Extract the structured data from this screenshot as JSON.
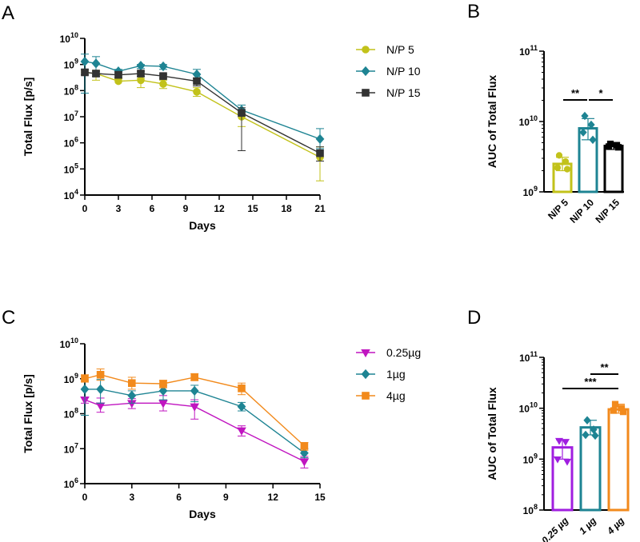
{
  "chart_data": [
    {
      "panel": "A",
      "type": "line",
      "xlabel": "Days",
      "ylabel": "Total Flux [p/s]",
      "xlim": [
        0,
        21
      ],
      "xticks": [
        0,
        3,
        6,
        9,
        12,
        15,
        18,
        21
      ],
      "y_scale": "log",
      "ylim_exp": [
        4,
        10
      ],
      "legend_position": "right",
      "series": [
        {
          "name": "N/P 5",
          "color": "#c2c21a",
          "marker": "circle",
          "x": [
            0,
            1,
            3,
            5,
            7,
            10,
            14,
            21
          ],
          "y": [
            500000000.0,
            450000000.0,
            230000000.0,
            250000000.0,
            180000000.0,
            90000000.0,
            10000000.0,
            280000.0
          ],
          "err_lo": [
            400000000.0,
            250000000.0,
            280000000.0,
            130000000.0,
            120000000.0,
            60000000.0,
            4200000.0,
            35000.0
          ],
          "err_hi": [
            600000000.0,
            600000000.0,
            290000000.0,
            290000000.0,
            250000000.0,
            130000000.0,
            14000000.0,
            700000.0
          ]
        },
        {
          "name": "N/P 10",
          "color": "#1e8493",
          "marker": "diamond",
          "x": [
            0,
            1,
            3,
            5,
            7,
            10,
            14,
            21
          ],
          "y": [
            1300000000.0,
            1100000000.0,
            550000000.0,
            900000000.0,
            850000000.0,
            420000000.0,
            18000000.0,
            1400000.0
          ],
          "err_lo": [
            80000000.0,
            400000000.0,
            400000000.0,
            700000000.0,
            650000000.0,
            250000000.0,
            12000000.0,
            600000.0
          ],
          "err_hi": [
            2500000000.0,
            2000000000.0,
            650000000.0,
            1000000000.0,
            1000000000.0,
            650000000.0,
            28000000.0,
            3500000.0
          ]
        },
        {
          "name": "N/P 15",
          "color": "#333333",
          "marker": "square",
          "x": [
            0,
            1,
            3,
            5,
            7,
            10,
            14,
            21
          ],
          "y": [
            500000000.0,
            450000000.0,
            400000000.0,
            450000000.0,
            360000000.0,
            230000000.0,
            14000000.0,
            400000.0
          ],
          "err_lo": [
            400000000.0,
            350000000.0,
            320000000.0,
            350000000.0,
            300000000.0,
            150000000.0,
            500000.0,
            200000.0
          ],
          "err_hi": [
            650000000.0,
            550000000.0,
            480000000.0,
            550000000.0,
            420000000.0,
            300000000.0,
            22000000.0,
            700000.0
          ]
        }
      ]
    },
    {
      "panel": "B",
      "type": "bar",
      "ylabel": "AUC of Total Flux",
      "y_scale": "log",
      "ylim_exp": [
        9,
        11
      ],
      "categories": [
        "N/P 5",
        "N/P 10",
        "N/P 15"
      ],
      "colors": [
        "#c2c21a",
        "#1e8493",
        "#000000"
      ],
      "values": [
        2500000000.0,
        8000000000.0,
        4500000000.0
      ],
      "err_lo": [
        2000000000.0,
        5500000000.0,
        4000000000.0
      ],
      "err_hi": [
        3100000000.0,
        11000000000.0,
        5000000000.0
      ],
      "points": [
        [
          3300000000.0,
          2700000000.0,
          2200000000.0,
          2100000000.0
        ],
        [
          12000000000.0,
          9000000000.0,
          7000000000.0,
          5500000000.0
        ],
        [
          4800000000.0,
          4600000000.0,
          4400000000.0,
          4300000000.0
        ]
      ],
      "point_markers": [
        "circle",
        "diamond",
        "square"
      ],
      "significance": [
        {
          "from": 0,
          "to": 1,
          "label": "**"
        },
        {
          "from": 1,
          "to": 2,
          "label": "*"
        }
      ]
    },
    {
      "panel": "C",
      "type": "line",
      "xlabel": "Days",
      "ylabel": "Total Flux [p/s]",
      "xlim": [
        0,
        15
      ],
      "xticks": [
        0,
        3,
        6,
        9,
        12,
        15
      ],
      "y_scale": "log",
      "ylim_exp": [
        6,
        10
      ],
      "legend_position": "right",
      "series": [
        {
          "name": "0.25µg",
          "color": "#c015c0",
          "marker": "triangle-down",
          "x": [
            0,
            1,
            3,
            5,
            7,
            10,
            14
          ],
          "y": [
            250000000.0,
            170000000.0,
            200000000.0,
            200000000.0,
            160000000.0,
            33000000.0,
            4300000.0
          ],
          "err_lo": [
            200000000.0,
            110000000.0,
            140000000.0,
            120000000.0,
            70000000.0,
            23000000.0,
            2800000.0
          ],
          "err_hi": [
            300000000.0,
            280000000.0,
            270000000.0,
            330000000.0,
            250000000.0,
            45000000.0,
            6000000.0
          ]
        },
        {
          "name": "1µg",
          "color": "#1e8493",
          "marker": "diamond",
          "x": [
            0,
            1,
            3,
            5,
            7,
            10,
            14
          ],
          "y": [
            500000000.0,
            500000000.0,
            330000000.0,
            450000000.0,
            450000000.0,
            160000000.0,
            7500000.0
          ],
          "err_lo": [
            90000000.0,
            200000000.0,
            200000000.0,
            250000000.0,
            220000000.0,
            120000000.0,
            5500000.0
          ],
          "err_hi": [
            900000000.0,
            950000000.0,
            450000000.0,
            650000000.0,
            650000000.0,
            210000000.0,
            10000000.0
          ]
        },
        {
          "name": "4µg",
          "color": "#f28a1c",
          "marker": "square",
          "x": [
            0,
            1,
            3,
            5,
            7,
            10,
            14
          ],
          "y": [
            1000000000.0,
            1300000000.0,
            750000000.0,
            720000000.0,
            1100000000.0,
            530000000.0,
            12000000.0
          ],
          "err_lo": [
            800000000.0,
            900000000.0,
            500000000.0,
            550000000.0,
            900000000.0,
            350000000.0,
            9000000.0
          ],
          "err_hi": [
            1300000000.0,
            1900000000.0,
            1100000000.0,
            900000000.0,
            1400000000.0,
            750000000.0,
            15000000.0
          ]
        }
      ]
    },
    {
      "panel": "D",
      "type": "bar",
      "ylabel": "AUC of Total Flux",
      "y_scale": "log",
      "ylim_exp": [
        8,
        11
      ],
      "categories": [
        "0.25 µg",
        "1 µg",
        "4 µg"
      ],
      "colors": [
        "#a01ee0",
        "#1e8493",
        "#f28a1c"
      ],
      "values": [
        1700000000.0,
        4200000000.0,
        9500000000.0
      ],
      "err_lo": [
        1000000000.0,
        3000000000.0,
        8000000000.0
      ],
      "err_hi": [
        2400000000.0,
        5800000000.0,
        12000000000.0
      ],
      "points": [
        [
          2300000000.0,
          2200000000.0,
          1000000000.0,
          900000000.0
        ],
        [
          5800000000.0,
          3800000000.0,
          3000000000.0,
          2900000000.0
        ],
        [
          12000000000.0,
          10000000000.0,
          9000000000.0,
          8500000000.0
        ]
      ],
      "point_markers": [
        "triangle-down",
        "diamond",
        "square"
      ],
      "significance": [
        {
          "from": 0,
          "to": 2,
          "label": "***"
        },
        {
          "from": 1,
          "to": 2,
          "label": "**"
        }
      ]
    }
  ]
}
